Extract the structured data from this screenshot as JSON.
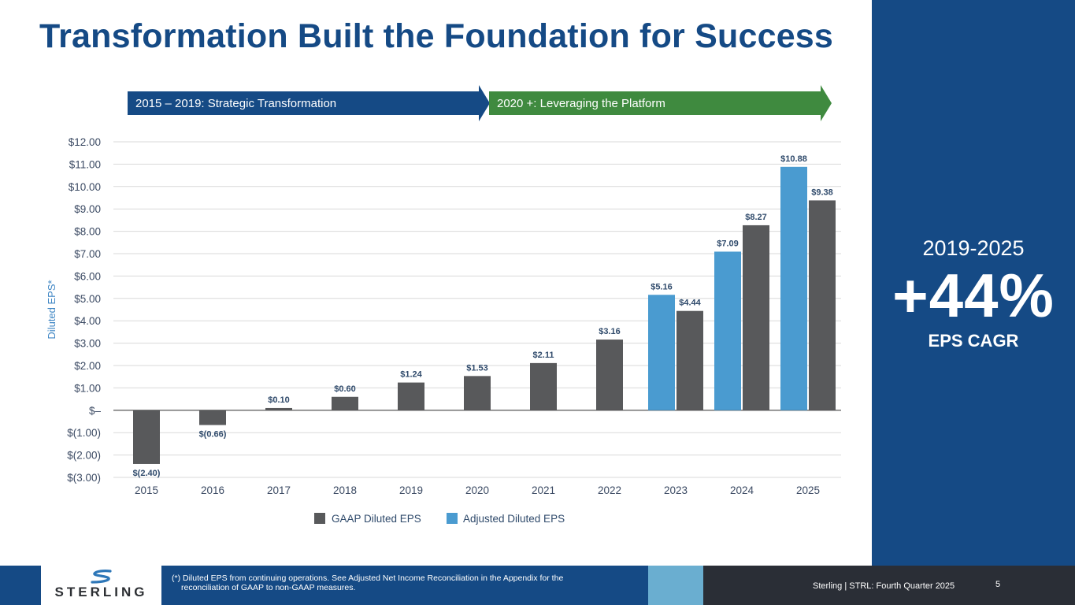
{
  "title": "Transformation Built the Foundation for Success",
  "phases": [
    {
      "label": "2015 – 2019: Strategic Transformation",
      "color": "#154a85"
    },
    {
      "label": "2020 +: Leveraging the Platform",
      "color": "#3f8a3f"
    }
  ],
  "chart_data": {
    "type": "bar",
    "ylabel": "Diluted EPS*",
    "ylim": [
      -3,
      12
    ],
    "yticks": [
      12,
      11,
      10,
      9,
      8,
      7,
      6,
      5,
      4,
      3,
      2,
      1,
      0,
      -1,
      -2,
      -3
    ],
    "ytick_labels": [
      "$12.00",
      "$11.00",
      "$10.00",
      "$9.00",
      "$8.00",
      "$7.00",
      "$6.00",
      "$5.00",
      "$4.00",
      "$3.00",
      "$2.00",
      "$1.00",
      "$–",
      "$(1.00)",
      "$(2.00)",
      "$(3.00)"
    ],
    "categories": [
      "2015",
      "2016",
      "2017",
      "2018",
      "2019",
      "2020",
      "2021",
      "2022",
      "2023",
      "2024",
      "2025"
    ],
    "series": [
      {
        "name": "GAAP Diluted EPS",
        "color": "#58595b",
        "values": [
          -2.4,
          -0.66,
          0.1,
          0.6,
          1.24,
          1.53,
          2.11,
          3.16,
          4.44,
          8.27,
          9.38
        ],
        "labels": [
          "$(2.40)",
          "$(0.66)",
          "$0.10",
          "$0.60",
          "$1.24",
          "$1.53",
          "$2.11",
          "$3.16",
          "$4.44",
          "$8.27",
          "$9.38"
        ]
      },
      {
        "name": "Adjusted Diluted EPS",
        "color": "#4a9bd0",
        "values": [
          null,
          null,
          null,
          null,
          null,
          null,
          null,
          null,
          5.16,
          7.09,
          10.88
        ],
        "labels": [
          null,
          null,
          null,
          null,
          null,
          null,
          null,
          null,
          "$5.16",
          "$7.09",
          "$10.88"
        ]
      }
    ],
    "legend": "bottom"
  },
  "cagr": {
    "period": "2019-2025",
    "value": "+44%",
    "label": "EPS CAGR"
  },
  "footer": {
    "logo_text": "STERLING",
    "note_line1": "(*) Diluted EPS from continuing operations. See Adjusted Net Income Reconciliation in the Appendix for the",
    "note_line2": "reconciliation of GAAP to non-GAAP measures.",
    "company": "Sterling | STRL:  Fourth Quarter 2025",
    "page": "5"
  }
}
